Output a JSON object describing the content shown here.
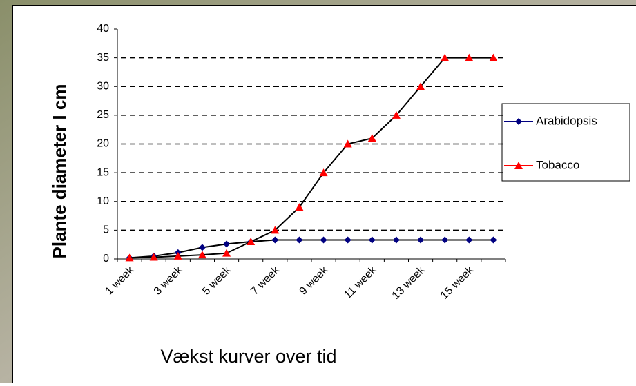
{
  "chart_data": {
    "type": "line",
    "y_label": "Plante diameter I cm",
    "x_label": "Vækst kurver over tid",
    "categories": [
      "1 week",
      null,
      "3 week",
      null,
      "5 week",
      null,
      "7 week",
      null,
      "9 week",
      null,
      "11 week",
      null,
      "13 week",
      null,
      "15 week",
      null
    ],
    "series": [
      {
        "name": "Arabidopsis",
        "color": "#000080",
        "marker": "diamond",
        "values": [
          0.2,
          0.5,
          1.1,
          2,
          2.6,
          3,
          3.3,
          3.3,
          3.3,
          3.3,
          3.3,
          3.3,
          3.3,
          3.3,
          3.3,
          3.3
        ]
      },
      {
        "name": "Tobacco",
        "color": "#ff0000",
        "marker": "triangle",
        "values": [
          0.2,
          0.3,
          0.5,
          0.7,
          1,
          3,
          5,
          9,
          15,
          20,
          21,
          25,
          30,
          35,
          35,
          35
        ]
      }
    ],
    "ylim": [
      0,
      40
    ],
    "yticks": [
      0,
      5,
      10,
      15,
      20,
      25,
      30,
      35,
      40
    ],
    "grid": true,
    "legend": "right"
  }
}
